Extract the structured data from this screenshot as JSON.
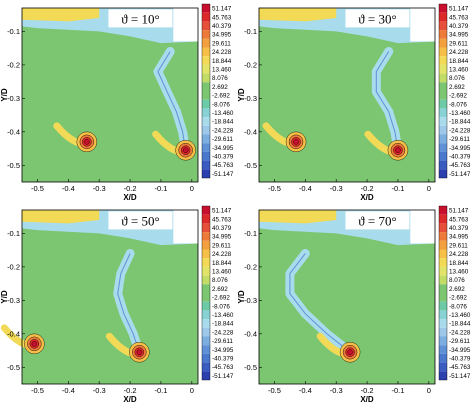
{
  "panels": [
    {
      "label": "ϑ = 10°",
      "vortices": [
        {
          "x": -0.34,
          "y": -0.43
        },
        {
          "x": -0.02,
          "y": -0.455
        }
      ],
      "sheet": [
        [
          -0.07,
          -0.16
        ],
        [
          -0.11,
          -0.22
        ],
        [
          -0.08,
          -0.28
        ],
        [
          -0.05,
          -0.34
        ],
        [
          -0.03,
          -0.4
        ],
        [
          -0.02,
          -0.455
        ]
      ]
    },
    {
      "label": "ϑ = 30°",
      "vortices": [
        {
          "x": -0.43,
          "y": -0.43
        },
        {
          "x": -0.1,
          "y": -0.455
        }
      ],
      "sheet": [
        [
          -0.13,
          -0.16
        ],
        [
          -0.17,
          -0.22
        ],
        [
          -0.17,
          -0.28
        ],
        [
          -0.13,
          -0.34
        ],
        [
          -0.11,
          -0.4
        ],
        [
          -0.1,
          -0.455
        ]
      ]
    },
    {
      "label": "ϑ = 50°",
      "vortices": [
        {
          "x": -0.51,
          "y": -0.43
        },
        {
          "x": -0.17,
          "y": -0.455
        }
      ],
      "sheet": [
        [
          -0.2,
          -0.16
        ],
        [
          -0.23,
          -0.22
        ],
        [
          -0.24,
          -0.28
        ],
        [
          -0.22,
          -0.34
        ],
        [
          -0.19,
          -0.4
        ],
        [
          -0.17,
          -0.455
        ]
      ]
    },
    {
      "label": "ϑ = 70°",
      "vortices": [
        {
          "x": -0.255,
          "y": -0.455
        }
      ],
      "sheet": [
        [
          -0.4,
          -0.16
        ],
        [
          -0.45,
          -0.22
        ],
        [
          -0.45,
          -0.28
        ],
        [
          -0.4,
          -0.34
        ],
        [
          -0.33,
          -0.4
        ],
        [
          -0.255,
          -0.455
        ]
      ]
    }
  ],
  "axes": {
    "xlabel": "X/D",
    "ylabel": "Y/D",
    "xlim": [
      -0.55,
      0.02
    ],
    "ylim": [
      -0.55,
      -0.03
    ],
    "xticks": [
      -0.5,
      -0.4,
      -0.3,
      -0.2,
      -0.1,
      0
    ],
    "xtick_labels": [
      "-0.5",
      "-0.4",
      "-0.3",
      "-0.2",
      "-0.1",
      "0"
    ],
    "yticks": [
      -0.1,
      -0.2,
      -0.3,
      -0.4,
      -0.5
    ],
    "ytick_labels": [
      "-0.1",
      "-0.2",
      "-0.3",
      "-0.4",
      "-0.5"
    ]
  },
  "colorbar": {
    "levels": [
      "51.147",
      "45.763",
      "40.379",
      "34.995",
      "29.611",
      "24.228",
      "18.844",
      "13.460",
      "8.076",
      "2.692",
      "-2.692",
      "-8.076",
      "-13.460",
      "-18.844",
      "-24.228",
      "-29.611",
      "-34.995",
      "-40.379",
      "-45.763",
      "-51.147"
    ],
    "colors": [
      "#c8102e",
      "#dc2a2a",
      "#e6503a",
      "#ee7a3a",
      "#f3a040",
      "#f6c048",
      "#f2da56",
      "#e2e46a",
      "#c2dc66",
      "#7cc672",
      "#7cc672",
      "#6ccaa6",
      "#88d2d4",
      "#a8dcec",
      "#9ec8ea",
      "#7caee0",
      "#6090d6",
      "#4a78cc",
      "#3a5cc0",
      "#2c40b0"
    ]
  },
  "colors": {
    "field": "#7cc672",
    "negative": "#a8dcec",
    "negative_dark": "#6090d6",
    "positive": "#f2da56",
    "core": "#c8102e"
  }
}
